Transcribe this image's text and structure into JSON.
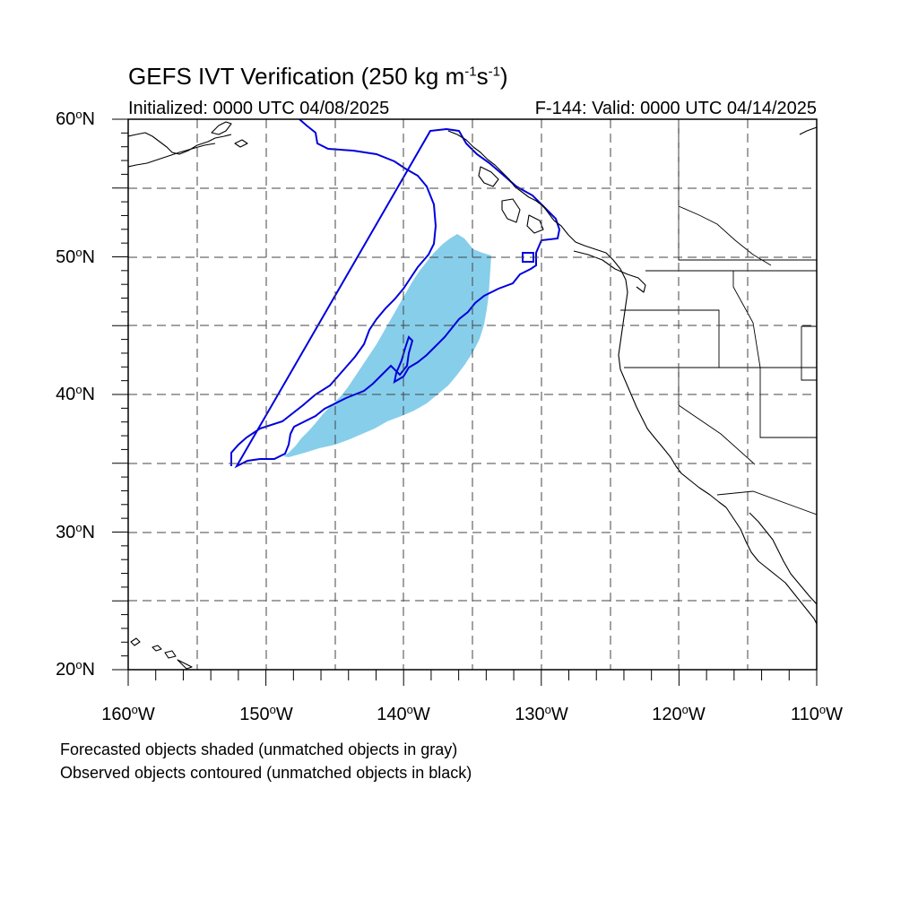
{
  "header": {
    "title_prefix": "GEFS IVT Verification (250 kg m",
    "exp1": "-1",
    "title_mid": "s",
    "exp2": "-1",
    "title_suffix": ")",
    "initialized": "Initialized: 0000 UTC 04/08/2025",
    "valid": "F-144: Valid: 0000 UTC 04/14/2025"
  },
  "axes": {
    "lat_labels": [
      {
        "text": "60",
        "unit": "o",
        "hem": "N"
      },
      {
        "text": "50",
        "unit": "o",
        "hem": "N"
      },
      {
        "text": "40",
        "unit": "o",
        "hem": "N"
      },
      {
        "text": "30",
        "unit": "o",
        "hem": "N"
      },
      {
        "text": "20",
        "unit": "o",
        "hem": "N"
      }
    ],
    "lon_labels": [
      {
        "text": "160",
        "unit": "o",
        "hem": "W"
      },
      {
        "text": "150",
        "unit": "o",
        "hem": "W"
      },
      {
        "text": "140",
        "unit": "o",
        "hem": "W"
      },
      {
        "text": "130",
        "unit": "o",
        "hem": "W"
      },
      {
        "text": "120",
        "unit": "o",
        "hem": "W"
      },
      {
        "text": "110",
        "unit": "o",
        "hem": "W"
      }
    ],
    "lon_range": [
      -160,
      -110
    ],
    "lat_range": [
      20,
      60
    ],
    "grid": "dashed every 5 degrees"
  },
  "legend_notes": {
    "line1": "Forecasted objects shaded (unmatched objects in gray)",
    "line2": "Observed objects contoured (unmatched objects in black)"
  },
  "colors": {
    "forecast_fill": "#87ceeb",
    "observed_contour": "#0000dd",
    "coastline": "#000000",
    "grid": "#444444"
  }
}
